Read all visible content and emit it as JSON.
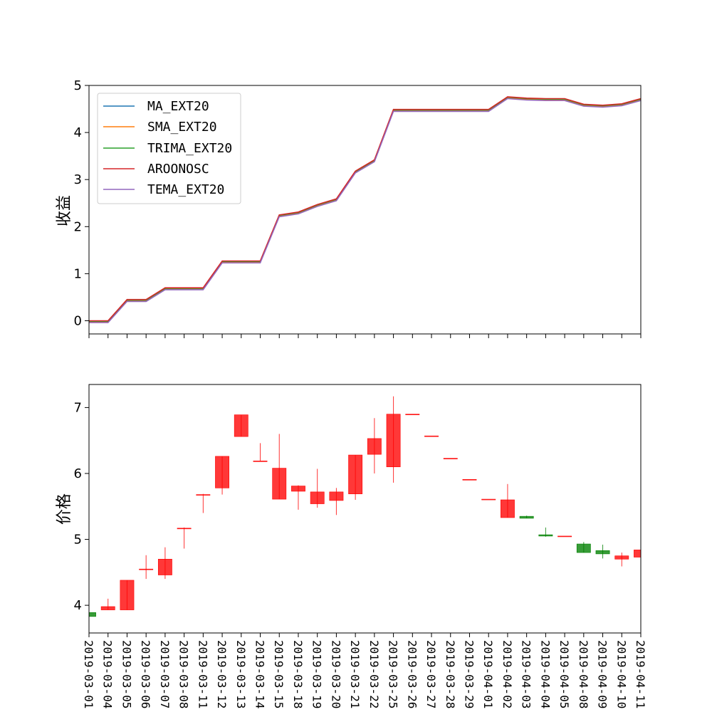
{
  "colors": {
    "up": "#ff0000",
    "down": "#008000"
  },
  "chart_data": [
    {
      "type": "line",
      "ylabel": "收益",
      "ylim": [
        -0.28,
        5.0
      ],
      "yticks": [
        0,
        1,
        2,
        3,
        4,
        5
      ],
      "legend_position": "upper-left",
      "x_shared": "dates",
      "series": [
        {
          "name": "MA_EXT20",
          "color": "#1f77b4",
          "offset": -0.03
        },
        {
          "name": "SMA_EXT20",
          "color": "#ff7f0e",
          "offset": -0.02
        },
        {
          "name": "TRIMA_EXT20",
          "color": "#2ca02c",
          "offset": -0.01
        },
        {
          "name": "AROONOSC",
          "color": "#d62728",
          "offset": 0.0
        },
        {
          "name": "TEMA_EXT20",
          "color": "#9467bd",
          "offset": -0.04
        }
      ],
      "base_values": [
        0.0,
        0.0,
        0.45,
        0.45,
        0.7,
        0.7,
        0.7,
        1.27,
        1.27,
        1.27,
        2.25,
        2.31,
        2.47,
        2.59,
        3.18,
        3.42,
        4.49,
        4.49,
        4.49,
        4.49,
        4.49,
        4.49,
        4.76,
        4.73,
        4.72,
        4.72,
        4.6,
        4.58,
        4.61,
        4.72
      ]
    },
    {
      "type": "candlestick",
      "ylabel": "价格",
      "ylim": [
        3.58,
        7.35
      ],
      "yticks": [
        4,
        5,
        6,
        7
      ],
      "x": [
        "2019-03-01",
        "2019-03-04",
        "2019-03-05",
        "2019-03-06",
        "2019-03-07",
        "2019-03-08",
        "2019-03-11",
        "2019-03-12",
        "2019-03-13",
        "2019-03-14",
        "2019-03-15",
        "2019-03-18",
        "2019-03-19",
        "2019-03-20",
        "2019-03-21",
        "2019-03-22",
        "2019-03-25",
        "2019-03-26",
        "2019-03-27",
        "2019-03-28",
        "2019-03-29",
        "2019-04-01",
        "2019-04-02",
        "2019-04-03",
        "2019-04-04",
        "2019-04-05",
        "2019-04-08",
        "2019-04-09",
        "2019-04-10",
        "2019-04-11"
      ],
      "open": [
        3.89,
        3.93,
        3.93,
        4.55,
        4.46,
        5.16,
        5.68,
        5.78,
        6.56,
        6.19,
        5.61,
        5.73,
        5.54,
        5.59,
        5.69,
        6.29,
        6.1,
        6.9,
        6.57,
        6.23,
        5.91,
        5.61,
        5.33,
        5.35,
        5.07,
        5.05,
        4.93,
        4.83,
        4.7,
        4.73
      ],
      "close": [
        3.83,
        3.98,
        4.38,
        4.55,
        4.7,
        5.17,
        5.68,
        6.26,
        6.89,
        6.19,
        6.08,
        5.81,
        5.72,
        5.72,
        6.28,
        6.53,
        6.9,
        6.9,
        6.57,
        6.23,
        5.91,
        5.61,
        5.6,
        5.32,
        5.05,
        5.05,
        4.8,
        4.78,
        4.75,
        4.84
      ],
      "high": [
        3.89,
        4.1,
        4.38,
        4.76,
        4.88,
        5.18,
        5.69,
        6.26,
        6.89,
        6.46,
        6.6,
        5.82,
        6.07,
        5.78,
        6.28,
        6.84,
        7.17,
        6.9,
        6.57,
        6.23,
        5.91,
        5.61,
        5.84,
        5.36,
        5.18,
        5.05,
        4.96,
        4.92,
        4.8,
        4.84
      ],
      "low": [
        3.83,
        3.93,
        3.93,
        4.4,
        4.4,
        4.86,
        5.4,
        5.68,
        6.56,
        6.19,
        5.61,
        5.45,
        5.48,
        5.37,
        5.6,
        6.0,
        5.86,
        6.9,
        6.57,
        6.23,
        5.91,
        5.61,
        5.33,
        5.32,
        5.04,
        5.05,
        4.8,
        4.71,
        4.59,
        4.73
      ]
    }
  ]
}
